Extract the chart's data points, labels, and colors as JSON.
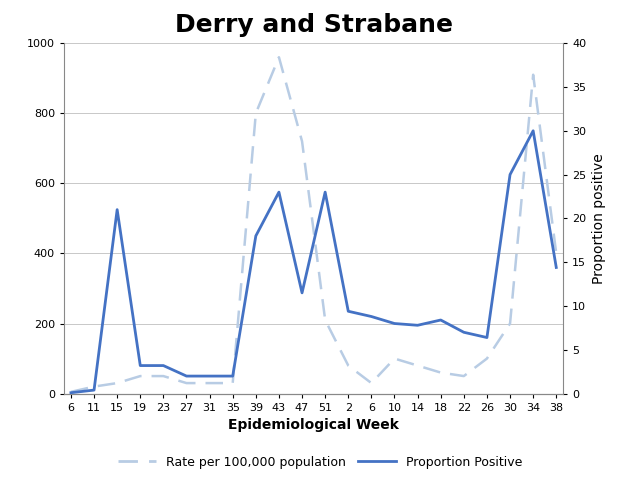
{
  "title": "Derry and Strabane",
  "xlabel": "Epidemiological Week",
  "ylabel_right": "Proportion positive",
  "ylim_left": [
    0,
    1000
  ],
  "ylim_right": [
    0,
    40
  ],
  "yticks_left": [
    0,
    200,
    400,
    600,
    800,
    1000
  ],
  "yticks_right": [
    0,
    5,
    10,
    15,
    20,
    25,
    30,
    35,
    40
  ],
  "x_labels": [
    "6",
    "11",
    "15",
    "19",
    "23",
    "27",
    "31",
    "35",
    "39",
    "43",
    "47",
    "51",
    "2",
    "6",
    "10",
    "14",
    "18",
    "22",
    "26",
    "30",
    "34",
    "38"
  ],
  "rate_y": [
    5,
    20,
    30,
    50,
    50,
    30,
    30,
    30,
    800,
    960,
    720,
    210,
    80,
    30,
    100,
    80,
    60,
    50,
    100,
    200,
    910,
    400
  ],
  "prop_y": [
    0.1,
    0.4,
    21,
    3.2,
    3.2,
    2.0,
    2.0,
    2.0,
    18,
    23,
    11.5,
    23,
    9.4,
    8.8,
    8.0,
    7.8,
    8.4,
    7.0,
    6.4,
    25,
    30,
    14.4
  ],
  "line_color": "#4472C4",
  "dashed_color": "#B8CCE4",
  "title_fontsize": 18,
  "axis_label_fontsize": 10,
  "tick_fontsize": 8,
  "legend_items": [
    "Rate per 100,000 population",
    "Proportion Positive"
  ],
  "background_color": "#ffffff"
}
